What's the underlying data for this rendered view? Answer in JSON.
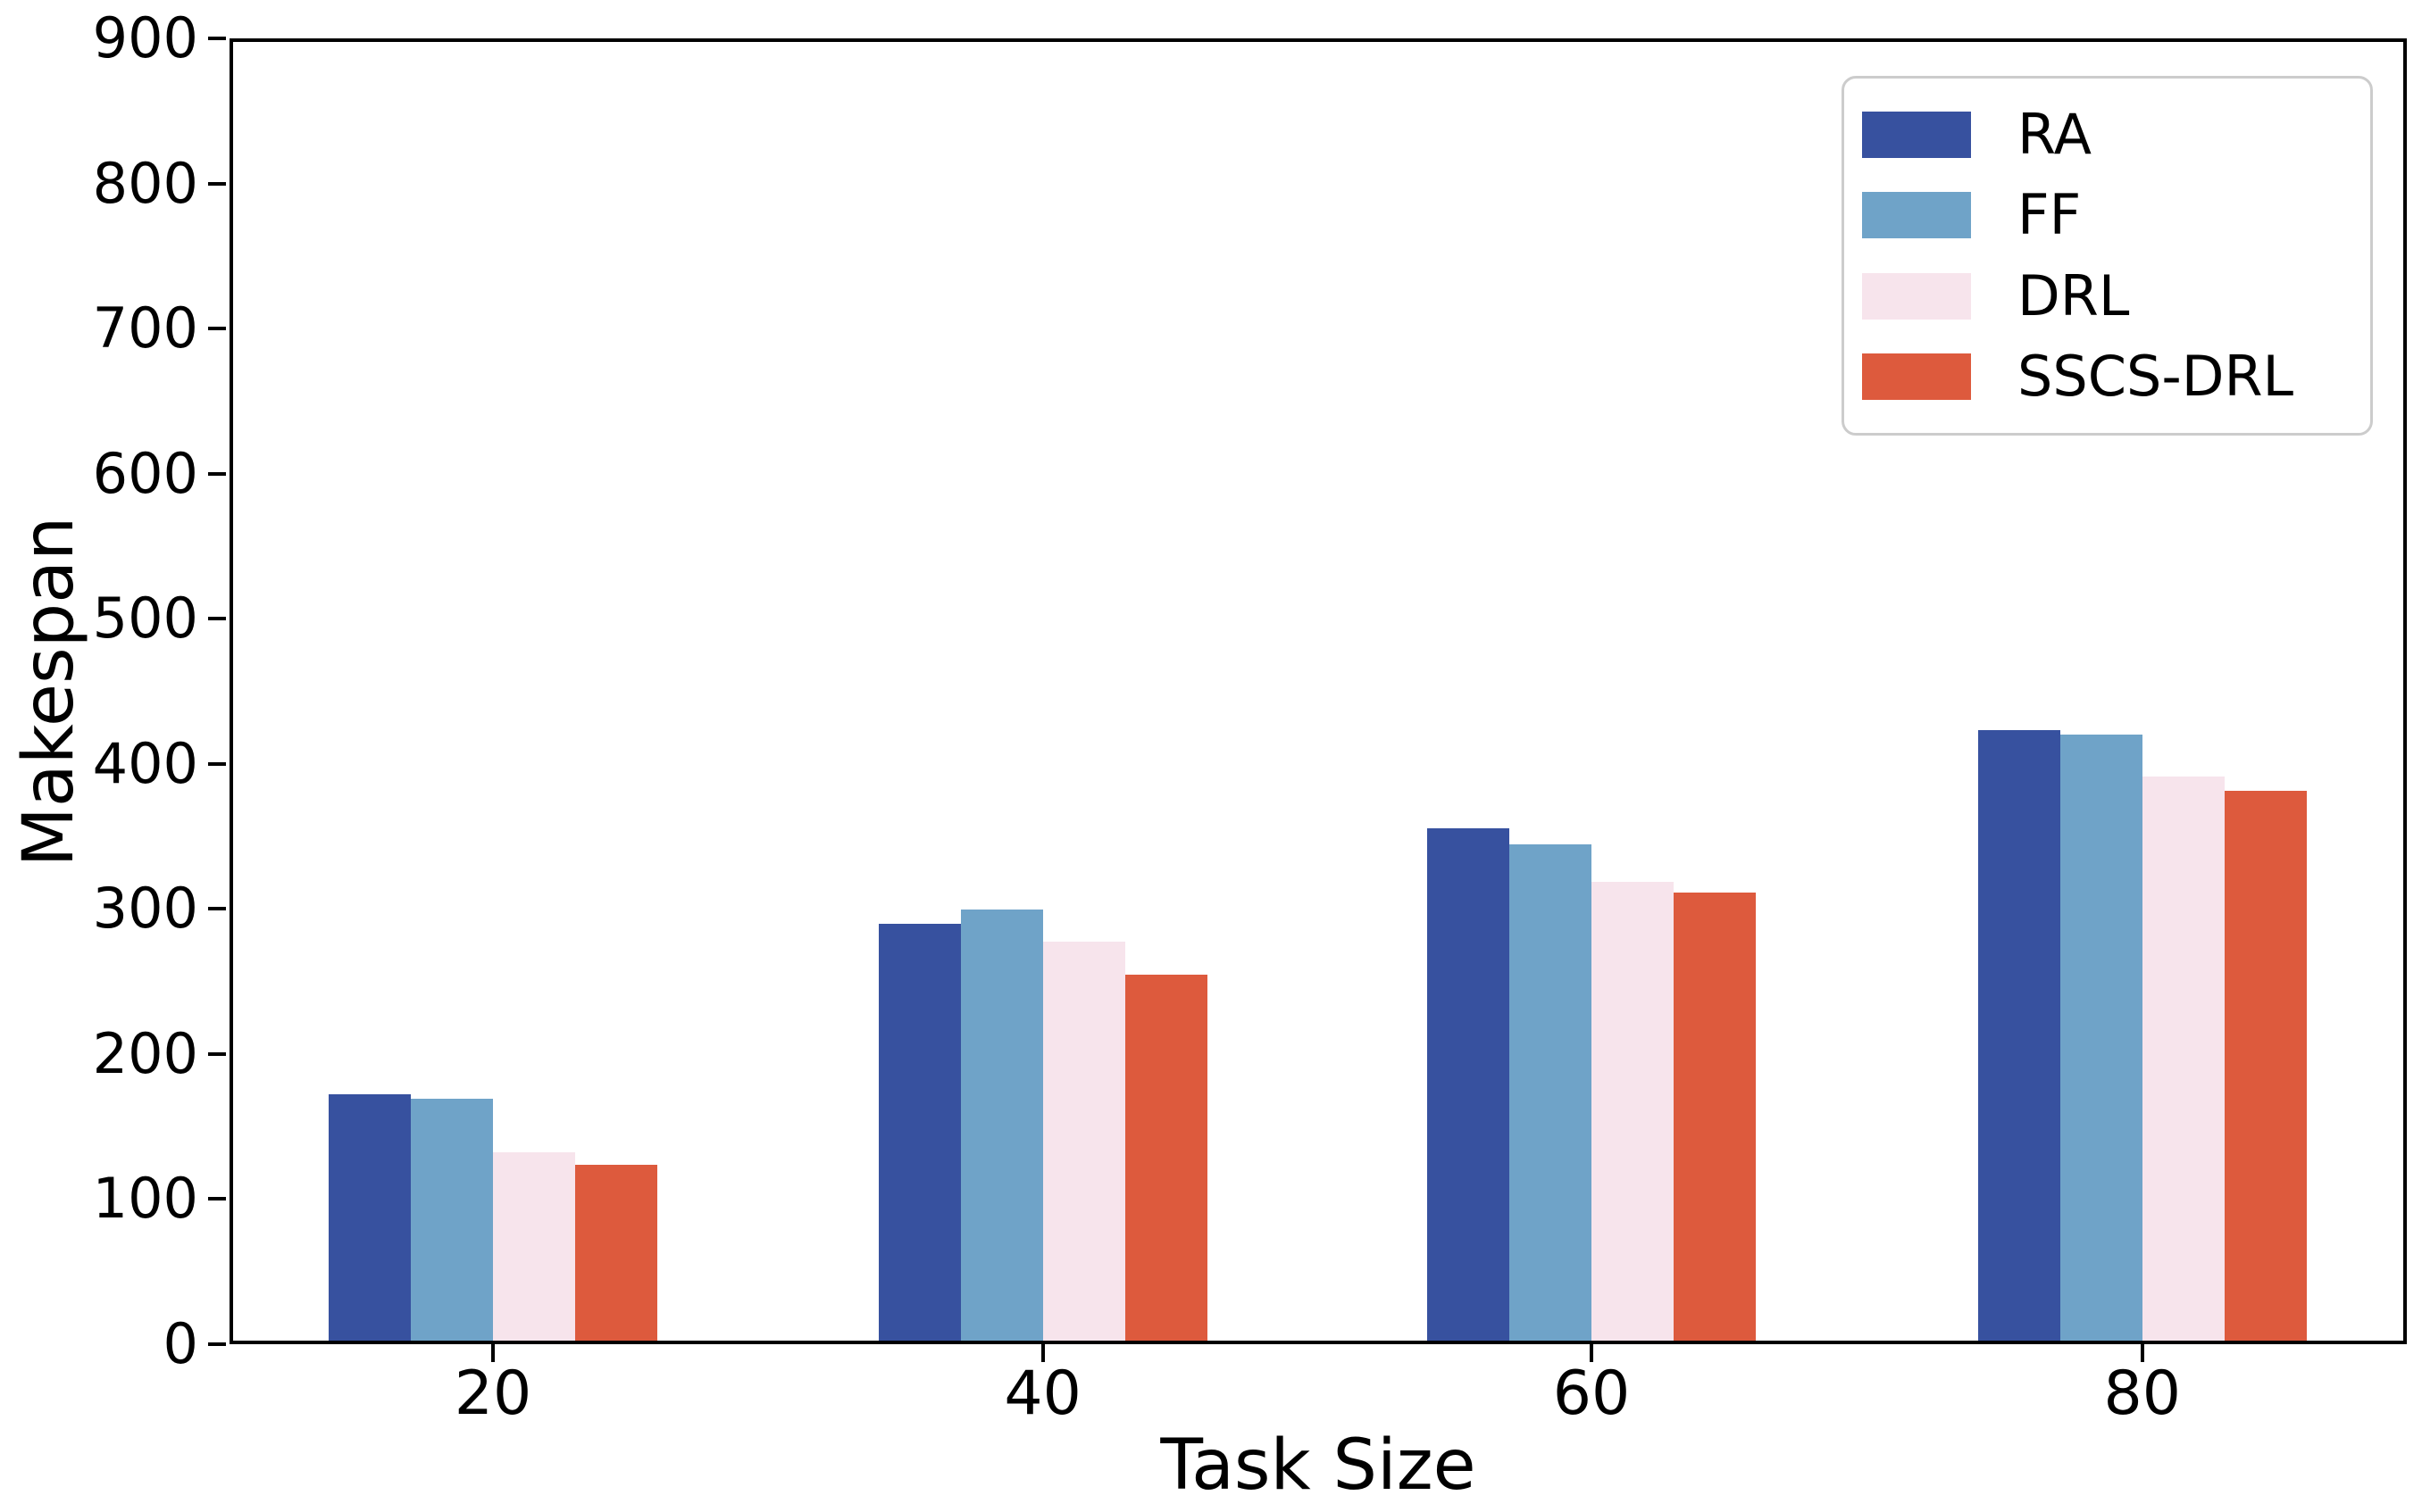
{
  "chart_data": {
    "type": "bar",
    "title": "",
    "xlabel": "Task Size",
    "ylabel": "Makespan",
    "categories": [
      "20",
      "40",
      "60",
      "80"
    ],
    "series": [
      {
        "name": "RA",
        "color": "#37519f",
        "values": [
          170,
          287,
          353,
          421
        ]
      },
      {
        "name": "FF",
        "color": "#6fa3c8",
        "values": [
          167,
          297,
          342,
          418
        ]
      },
      {
        "name": "DRL",
        "color": "#f7e4ec",
        "values": [
          130,
          275,
          316,
          389
        ]
      },
      {
        "name": "SSCS-DRL",
        "color": "#dd5a3d",
        "values": [
          121,
          252,
          309,
          379
        ]
      }
    ],
    "ylim": [
      0,
      900
    ],
    "ytick_step": 100,
    "ytick_labels": [
      "0",
      "100",
      "200",
      "300",
      "400",
      "500",
      "600",
      "700",
      "800",
      "900"
    ],
    "grid": false,
    "legend_position": "upper right",
    "axis_color": "#000000",
    "legend_border_color": "#cccccc",
    "background_color": "#ffffff"
  }
}
